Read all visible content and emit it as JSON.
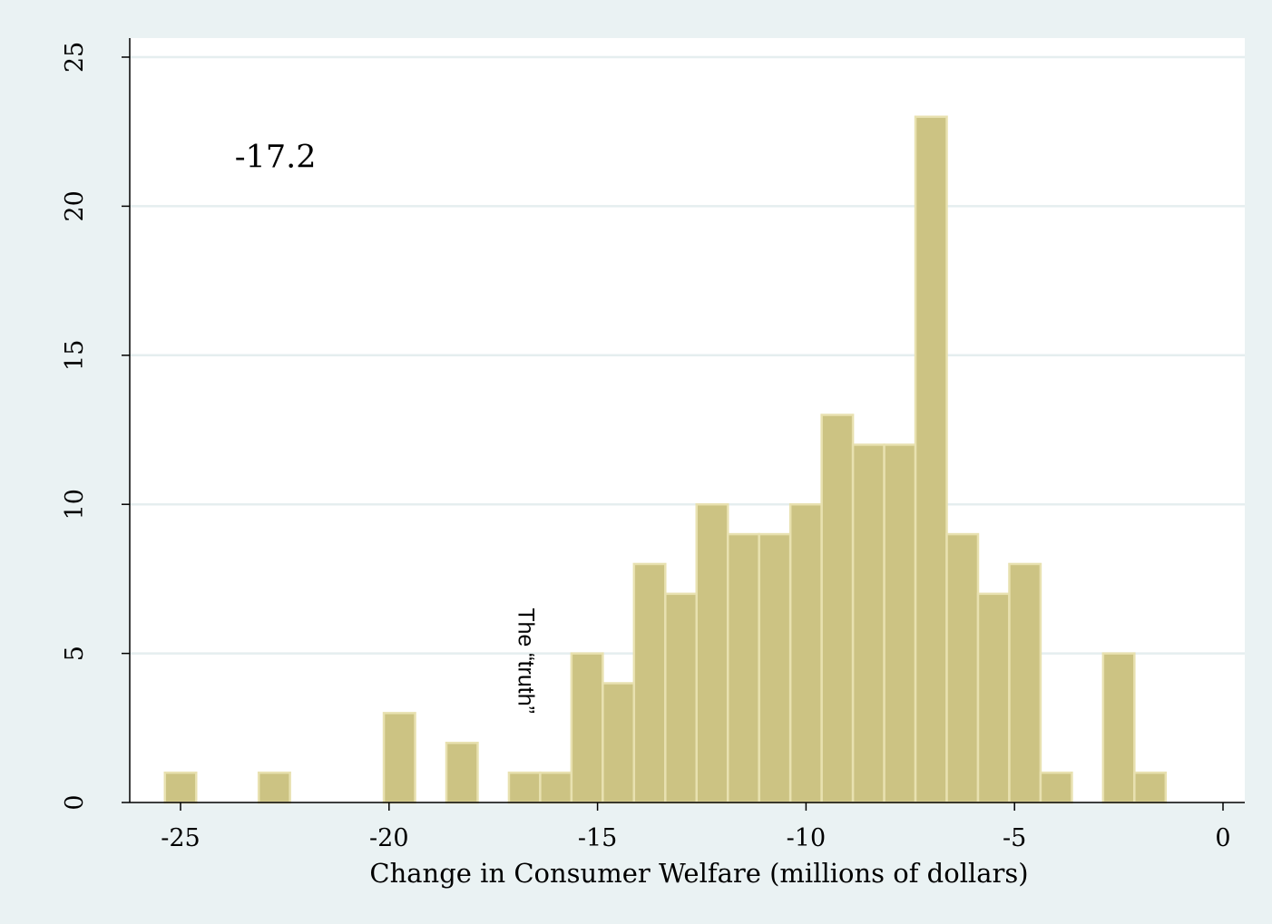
{
  "chart_data": {
    "type": "bar",
    "xlabel": "Change in Consumer Welfare (millions of dollars)",
    "ylabel": "",
    "xlim": [
      -26.2,
      0.9
    ],
    "ylim": [
      0,
      25
    ],
    "xticks": [
      -25,
      -20,
      -15,
      -10,
      -5,
      0
    ],
    "xtick_labels": [
      "-25",
      "-20",
      "-15",
      "-10",
      "-5",
      "0"
    ],
    "yticks": [
      0,
      5,
      10,
      15,
      20,
      25
    ],
    "ytick_labels": [
      "0",
      "5",
      "10",
      "15",
      "20",
      "25"
    ],
    "grid": true,
    "bar_color": "#ccc383",
    "bar_edge_color": "#e8e1b0",
    "bin_width": 0.75,
    "bars": [
      {
        "x": -25.0,
        "count": 1
      },
      {
        "x": -22.75,
        "count": 1
      },
      {
        "x": -19.75,
        "count": 3
      },
      {
        "x": -18.25,
        "count": 2
      },
      {
        "x": -16.75,
        "count": 1
      },
      {
        "x": -16.0,
        "count": 1
      },
      {
        "x": -15.25,
        "count": 5
      },
      {
        "x": -14.5,
        "count": 4
      },
      {
        "x": -13.75,
        "count": 8
      },
      {
        "x": -13.0,
        "count": 7
      },
      {
        "x": -12.25,
        "count": 10
      },
      {
        "x": -11.5,
        "count": 9
      },
      {
        "x": -10.75,
        "count": 9
      },
      {
        "x": -10.0,
        "count": 10
      },
      {
        "x": -9.25,
        "count": 13
      },
      {
        "x": -8.5,
        "count": 12
      },
      {
        "x": -7.75,
        "count": 12
      },
      {
        "x": -7.0,
        "count": 23
      },
      {
        "x": -6.25,
        "count": 9
      },
      {
        "x": -5.5,
        "count": 7
      },
      {
        "x": -4.75,
        "count": 8
      },
      {
        "x": -4.0,
        "count": 1
      },
      {
        "x": -2.5,
        "count": 5
      },
      {
        "x": -1.75,
        "count": 1
      }
    ],
    "annotations": [
      {
        "text": "-17.2",
        "x": -23.7,
        "y": 21
      },
      {
        "text": "The “truth”",
        "x": -16.9,
        "y": 5.0,
        "rotate": 90
      }
    ]
  }
}
